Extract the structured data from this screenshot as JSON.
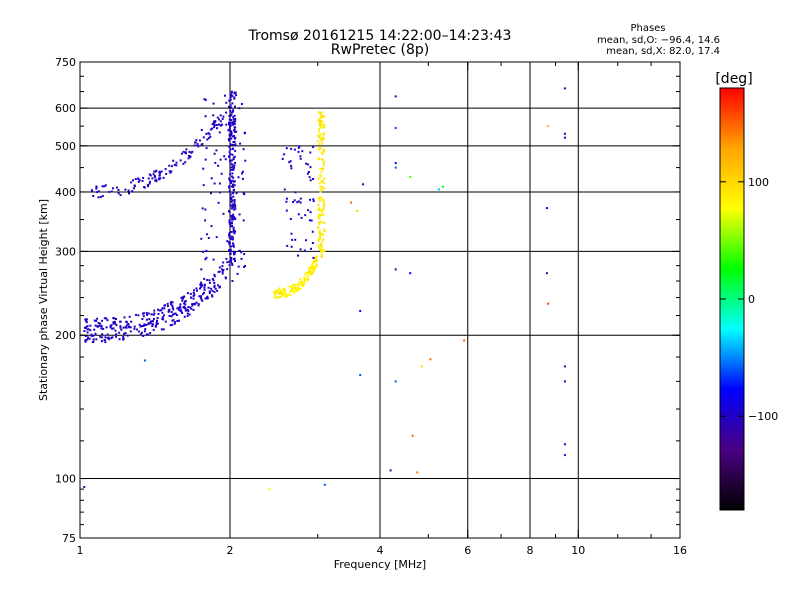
{
  "chart_data": {
    "type": "scatter",
    "title": "Tromsø 20161215 14:22:00–14:23:43",
    "subtitle": "RwPretec (8p)",
    "xlabel": "Frequency [MHz]",
    "ylabel": "Stationary phase Virtual Height [km]",
    "x_scale": "log",
    "y_scale": "log",
    "xlim": [
      1,
      16
    ],
    "ylim": [
      75,
      750
    ],
    "x_ticks": [
      1,
      2,
      4,
      6,
      8,
      10,
      16
    ],
    "x_tick_labels": [
      "1",
      "2",
      "4",
      "6",
      "8",
      "10",
      "16"
    ],
    "y_ticks": [
      75,
      100,
      200,
      300,
      400,
      500,
      600,
      750
    ],
    "y_tick_labels": [
      "75",
      "100",
      "200",
      "300",
      "400",
      "500",
      "600",
      "750"
    ],
    "x_grid": [
      2,
      4,
      6,
      8,
      10
    ],
    "y_grid": [
      100,
      200,
      300,
      400,
      500,
      600
    ],
    "grid": true,
    "stats": {
      "heading": "Phases",
      "line_o": "mean, sd,O: −96.4, 14.6",
      "line_x": "mean, sd,X:  82.0, 17.4"
    },
    "colorbar": {
      "label": "[deg]",
      "range": [
        -180,
        180
      ],
      "ticks": [
        100,
        0,
        -100
      ],
      "tick_labels": [
        "100",
        "0",
        "−100"
      ],
      "stops": [
        "#000000",
        "#4b0082",
        "#0000ff",
        "#00ffff",
        "#00ff00",
        "#ffff00",
        "#ffa500",
        "#ff0000"
      ]
    },
    "traces": [
      {
        "kind": "o-lower",
        "x_range": [
          1.02,
          1.98
        ],
        "y_range": [
          200,
          270
        ],
        "phase": -100,
        "count": 320
      },
      {
        "kind": "o-upper",
        "x_range": [
          1.05,
          1.95
        ],
        "y_range": [
          400,
          585
        ],
        "phase": -100,
        "count": 130
      },
      {
        "kind": "o-cusp",
        "x": 2.02,
        "y_range": [
          280,
          650
        ],
        "phase": -100,
        "count": 220
      },
      {
        "kind": "o-spread",
        "x_range": [
          1.75,
          2.15
        ],
        "y_range": [
          260,
          650
        ],
        "phase": -100,
        "count": 90
      },
      {
        "kind": "o-spread",
        "x_range": [
          2.55,
          2.95
        ],
        "y_range": [
          290,
          500
        ],
        "phase": -100,
        "count": 60
      },
      {
        "kind": "x-lower",
        "x_range": [
          2.45,
          3.0
        ],
        "y_range": [
          245,
          290
        ],
        "phase": 85,
        "count": 140
      },
      {
        "kind": "x-cusp",
        "x": 3.05,
        "y_range": [
          290,
          590
        ],
        "phase": 90,
        "count": 160
      }
    ],
    "points": [
      {
        "x": 4.3,
        "y": 635,
        "phase": -100
      },
      {
        "x": 4.3,
        "y": 545,
        "phase": -60
      },
      {
        "x": 4.3,
        "y": 460,
        "phase": -80
      },
      {
        "x": 4.3,
        "y": 450,
        "phase": -60
      },
      {
        "x": 4.6,
        "y": 430,
        "phase": 40
      },
      {
        "x": 5.25,
        "y": 405,
        "phase": -40
      },
      {
        "x": 5.35,
        "y": 410,
        "phase": 20
      },
      {
        "x": 3.7,
        "y": 415,
        "phase": -100
      },
      {
        "x": 3.5,
        "y": 380,
        "phase": 150
      },
      {
        "x": 3.6,
        "y": 365,
        "phase": 100
      },
      {
        "x": 4.3,
        "y": 275,
        "phase": -120
      },
      {
        "x": 4.6,
        "y": 270,
        "phase": -80
      },
      {
        "x": 3.65,
        "y": 225,
        "phase": -80
      },
      {
        "x": 5.9,
        "y": 195,
        "phase": 150
      },
      {
        "x": 5.05,
        "y": 178,
        "phase": 150
      },
      {
        "x": 4.85,
        "y": 172,
        "phase": 100
      },
      {
        "x": 3.65,
        "y": 165,
        "phase": -60
      },
      {
        "x": 4.3,
        "y": 160,
        "phase": -60
      },
      {
        "x": 4.65,
        "y": 123,
        "phase": 150
      },
      {
        "x": 4.2,
        "y": 104,
        "phase": -120
      },
      {
        "x": 4.75,
        "y": 103,
        "phase": 140
      },
      {
        "x": 3.1,
        "y": 97,
        "phase": -60
      },
      {
        "x": 1.02,
        "y": 96,
        "phase": -120
      },
      {
        "x": 2.4,
        "y": 95,
        "phase": 80
      },
      {
        "x": 1.35,
        "y": 177,
        "phase": -60
      },
      {
        "x": 9.4,
        "y": 660,
        "phase": -100
      },
      {
        "x": 8.7,
        "y": 550,
        "phase": 120
      },
      {
        "x": 9.4,
        "y": 530,
        "phase": -100
      },
      {
        "x": 9.4,
        "y": 520,
        "phase": -100
      },
      {
        "x": 8.65,
        "y": 370,
        "phase": -80
      },
      {
        "x": 8.65,
        "y": 270,
        "phase": -100
      },
      {
        "x": 8.7,
        "y": 233,
        "phase": 160
      },
      {
        "x": 9.4,
        "y": 172,
        "phase": -120
      },
      {
        "x": 9.4,
        "y": 160,
        "phase": -100
      },
      {
        "x": 9.4,
        "y": 118,
        "phase": -100
      },
      {
        "x": 9.4,
        "y": 112,
        "phase": -100
      }
    ]
  }
}
